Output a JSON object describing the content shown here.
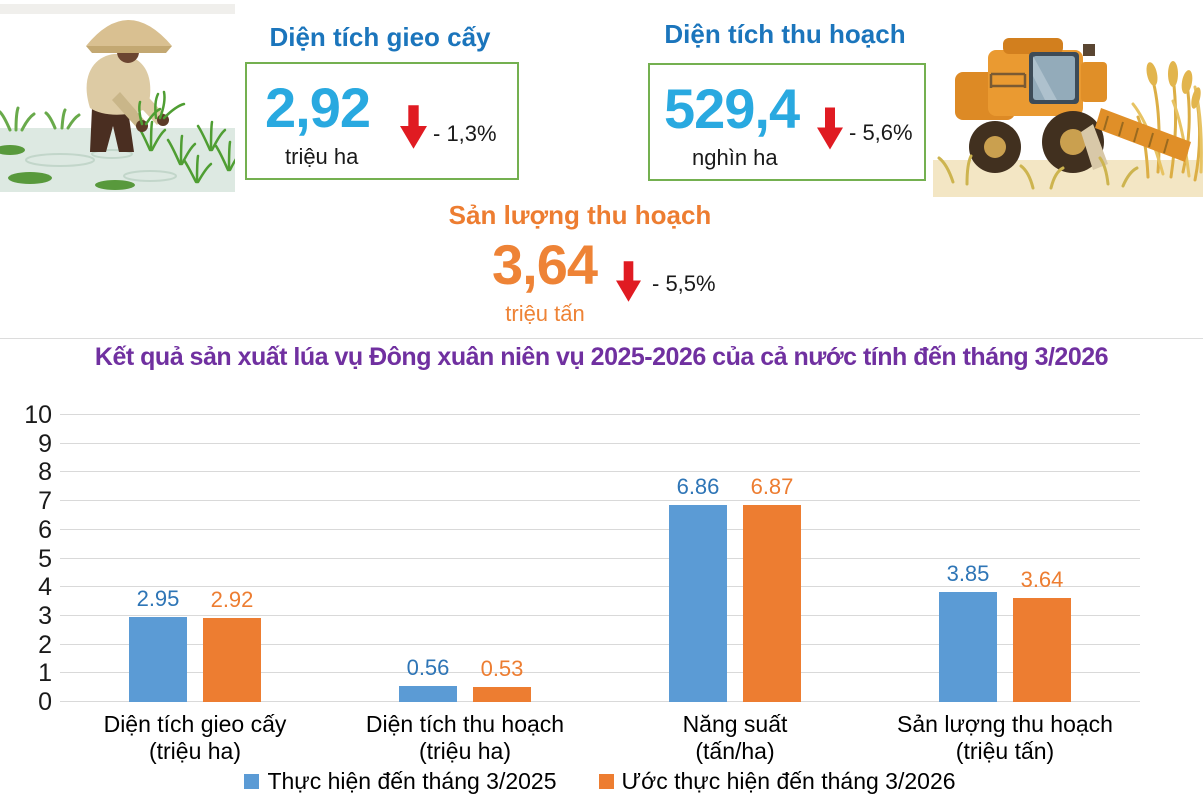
{
  "colors": {
    "stat_title_blue": "#1b75bc",
    "stat_value_cyan": "#29a9e0",
    "stat_orange": "#ee8336",
    "red": "#e01b22",
    "green_box_border": "#74b050",
    "chart_title_purple": "#7030a0",
    "gridline": "#d9d9d9"
  },
  "stats": [
    {
      "title": "Diện tích gieo cấy",
      "value": "2,92",
      "unit": "triệu ha",
      "delta": "- 1,3%"
    },
    {
      "title": "Diện tích thu hoạch",
      "value": "529,4",
      "unit": "nghìn ha",
      "delta": "- 5,6%"
    },
    {
      "title": "Sản lượng thu hoạch",
      "value": "3,64",
      "unit": "triệu tấn",
      "delta": "- 5,5%"
    }
  ],
  "illustrations": {
    "left": "farmer-planting-rice-illustration",
    "right": "combine-harvester-rice-field-illustration"
  },
  "chart_data": {
    "type": "bar",
    "title": "Kết quả sản xuất lúa vụ Đông xuân niên vụ 2025-2026 của cả nước tính đến tháng 3/2026",
    "categories": [
      [
        "Diện tích gieo cấy",
        "(triệu ha)"
      ],
      [
        "Diện tích thu hoạch",
        "(triệu ha)"
      ],
      [
        "Năng suất",
        "(tấn/ha)"
      ],
      [
        "Sản lượng thu hoạch",
        "(triệu tấn)"
      ]
    ],
    "series": [
      {
        "name": "Thực hiện đến tháng 3/2025",
        "color": "#5b9bd5",
        "label_color": "#2e75b6",
        "values": [
          2.95,
          0.56,
          6.86,
          3.85
        ]
      },
      {
        "name": "Ước thực hiện đến tháng 3/2026",
        "color": "#ed7d31",
        "label_color": "#ed7d31",
        "values": [
          2.92,
          0.53,
          6.87,
          3.64
        ]
      }
    ],
    "xlabel": "",
    "ylabel": "",
    "ylim": [
      0,
      10
    ],
    "yticks": [
      0,
      1,
      2,
      3,
      4,
      5,
      6,
      7,
      8,
      9,
      10
    ],
    "grid": true,
    "legend_position": "bottom"
  }
}
